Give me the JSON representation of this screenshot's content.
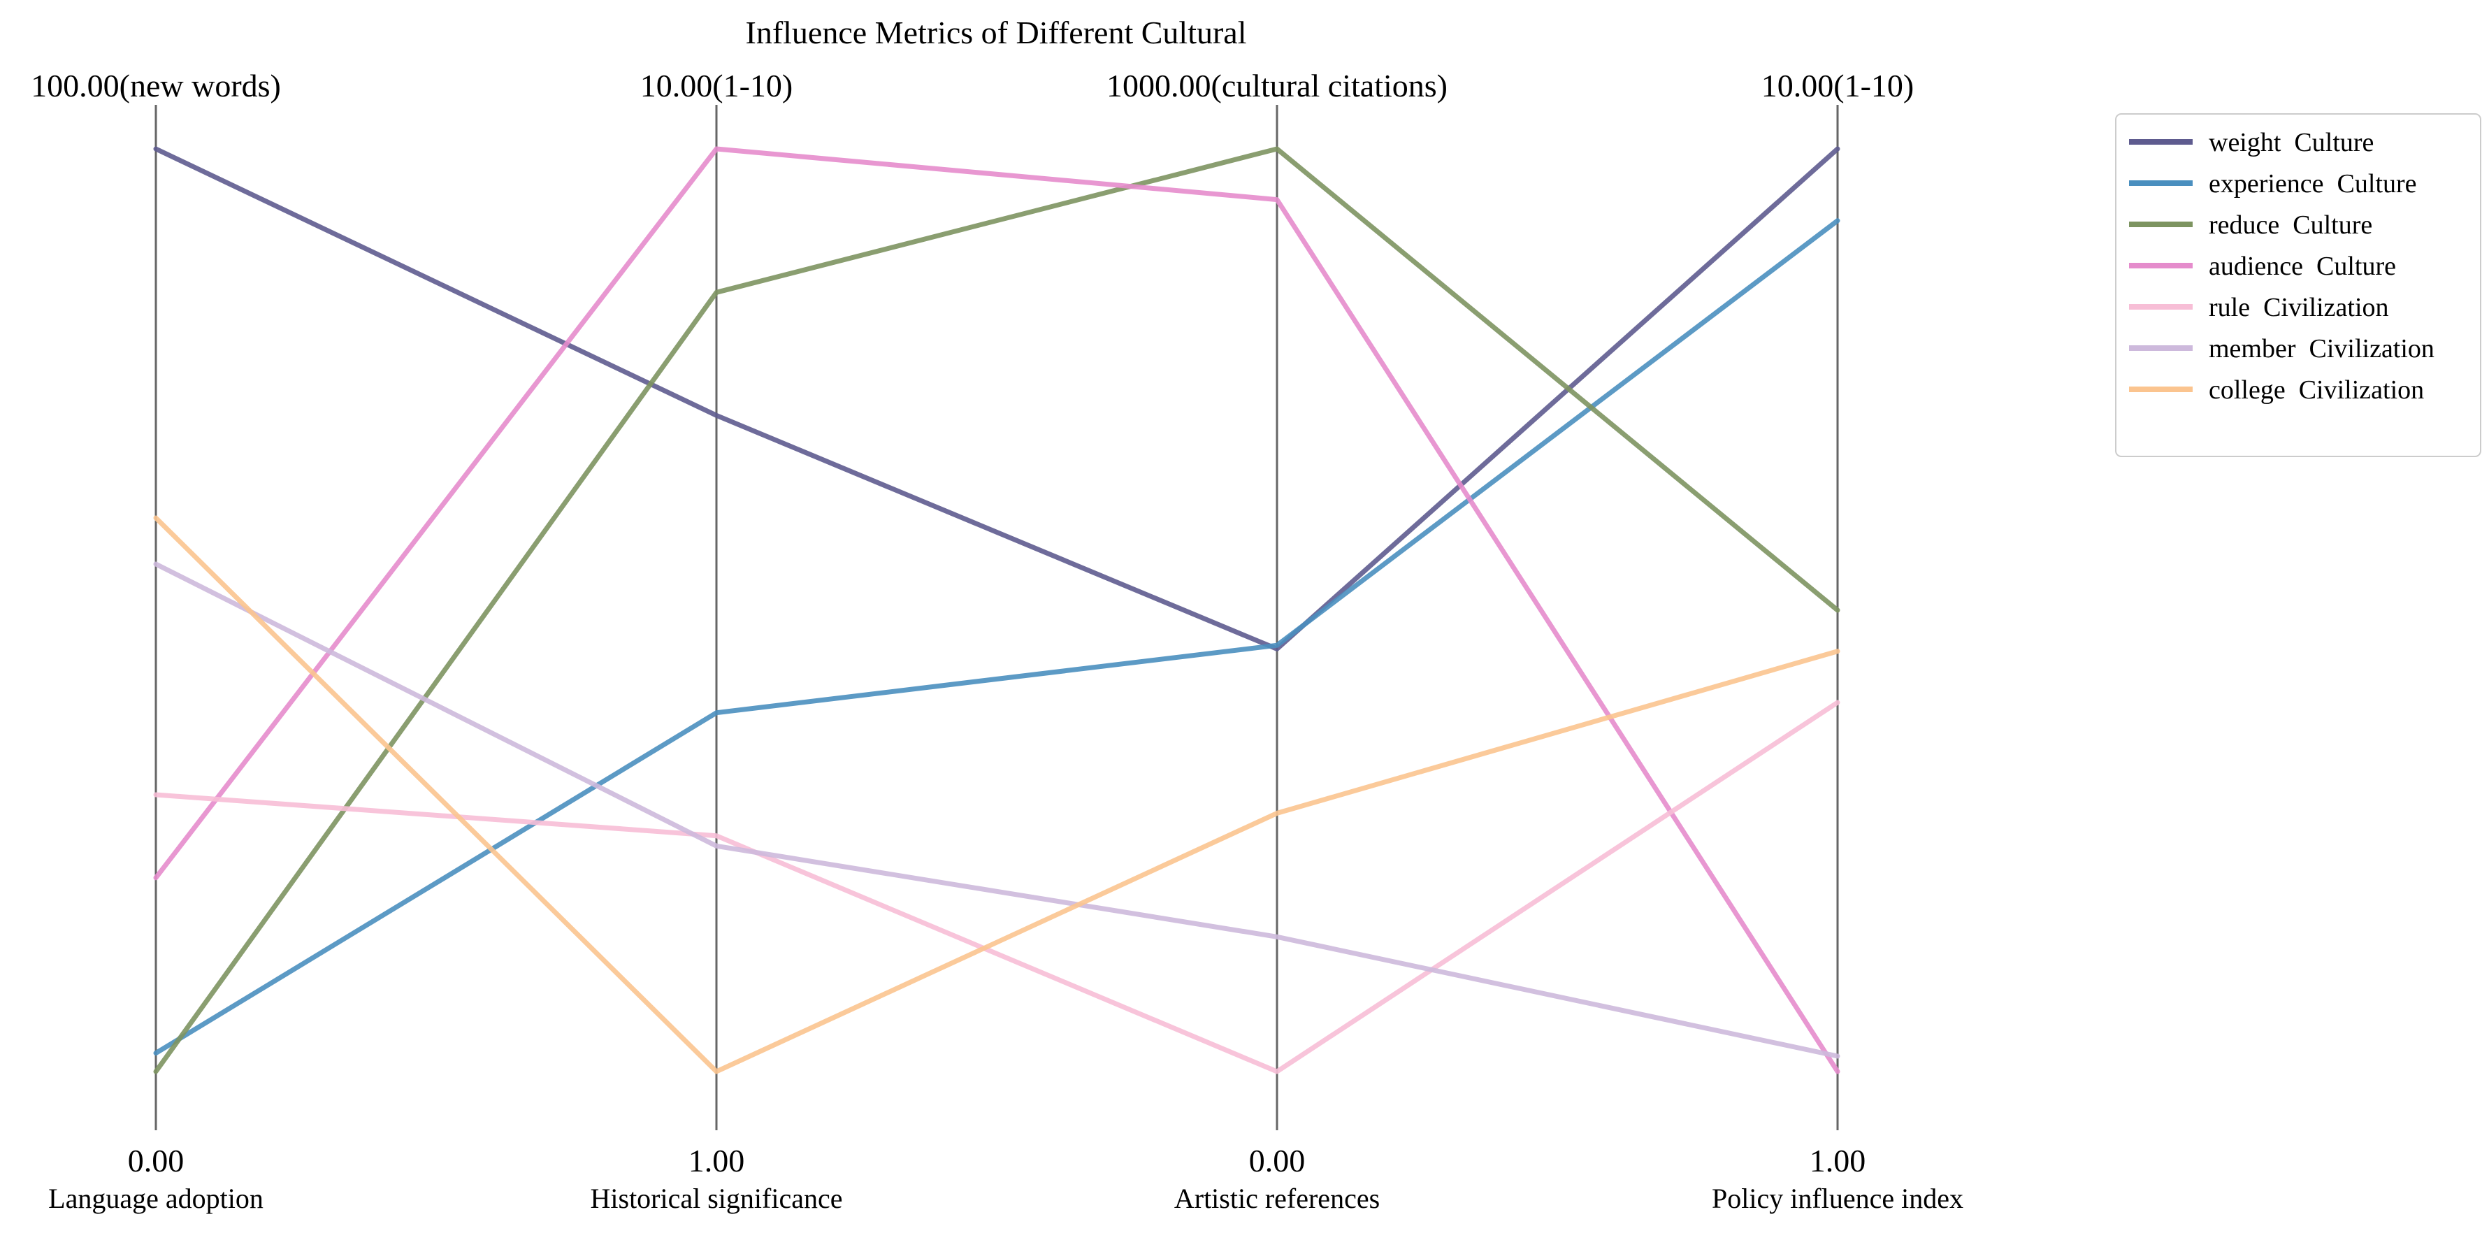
{
  "chart_data": {
    "type": "parallel_coordinates",
    "title": "Influence Metrics of Different Cultural",
    "axes": [
      {
        "name": "Language adoption",
        "min": 0.0,
        "max": 100.0,
        "min_label": "0.00",
        "max_label": "100.00(new words)"
      },
      {
        "name": "Historical significance",
        "min": 1.0,
        "max": 10.0,
        "min_label": "1.00",
        "max_label": "10.00(1-10)"
      },
      {
        "name": "Artistic references",
        "min": 0.0,
        "max": 1000.0,
        "min_label": "0.00",
        "max_label": "1000.00(cultural citations)"
      },
      {
        "name": "Policy influence index",
        "min": 1.0,
        "max": 10.0,
        "min_label": "1.00",
        "max_label": "10.00(1-10)"
      }
    ],
    "series": [
      {
        "name": "weight  Culture",
        "color": "#5e5b8f",
        "values": [
          100,
          7.4,
          458,
          10
        ]
      },
      {
        "name": "experience  Culture",
        "color": "#4a8fbf",
        "values": [
          2,
          4.5,
          462,
          9.3
        ]
      },
      {
        "name": "reduce  Culture",
        "color": "#7d9460",
        "values": [
          0,
          8.6,
          1000,
          5.5
        ]
      },
      {
        "name": "audience  Culture",
        "color": "#e58ccc",
        "values": [
          21,
          10,
          945,
          1
        ]
      },
      {
        "name": "rule  Civilization",
        "color": "#f7bed6",
        "values": [
          30,
          3.3,
          0,
          4.6
        ]
      },
      {
        "name": "member  Civilization",
        "color": "#cdb9dc",
        "values": [
          55,
          3.2,
          146,
          1.15
        ]
      },
      {
        "name": "college  Civilization",
        "color": "#fbc48f",
        "values": [
          60,
          1,
          280,
          5.1
        ]
      }
    ],
    "legend_position": "top-right",
    "grid": false
  }
}
